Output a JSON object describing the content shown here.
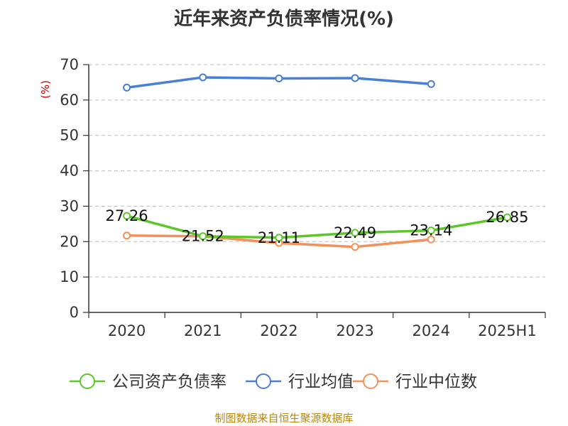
{
  "chart_data": {
    "type": "line",
    "title": "近年来资产负债率情况(%)",
    "ylabel": "(%)",
    "ylim": [
      0,
      70
    ],
    "yticks": [
      0,
      10,
      20,
      30,
      40,
      50,
      60,
      70
    ],
    "categories": [
      "2020",
      "2021",
      "2022",
      "2023",
      "2024",
      "2025H1"
    ],
    "grid": true,
    "legend_position": "bottom",
    "series": [
      {
        "name": "公司资产负债率",
        "color": "#5dc72a",
        "values": [
          27.26,
          21.52,
          21.11,
          22.49,
          23.14,
          26.85
        ],
        "labels": [
          "27.26",
          "21.52",
          "21.11",
          "22.49",
          "23.14",
          "26.85"
        ]
      },
      {
        "name": "行业均值",
        "color": "#4a7fd6",
        "values": [
          63.5,
          66.4,
          66.1,
          66.2,
          64.5,
          null
        ]
      },
      {
        "name": "行业中位数",
        "color": "#f4905a",
        "values": [
          21.7,
          21.5,
          19.6,
          18.5,
          20.6,
          null
        ]
      }
    ]
  },
  "footer": {
    "source": "制图数据来自恒生聚源数据库"
  }
}
